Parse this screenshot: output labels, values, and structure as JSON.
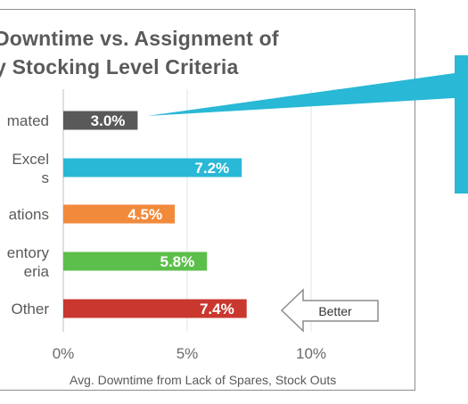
{
  "chart_data": {
    "type": "bar",
    "orientation": "horizontal",
    "title": [
      "Downtime vs. Assignment of",
      "y Stocking Level Criteria"
    ],
    "categories": [
      [
        "mated"
      ],
      [
        "Excel",
        "s"
      ],
      [
        "ations"
      ],
      [
        "entory",
        "eria"
      ],
      [
        "Other"
      ]
    ],
    "values": [
      3.0,
      7.2,
      4.5,
      5.8,
      7.4
    ],
    "value_labels": [
      "3.0%",
      "7.2%",
      "4.5%",
      "5.8%",
      "7.4%"
    ],
    "colors": [
      "#595959",
      "#29b8d6",
      "#f28a3c",
      "#5cbf4b",
      "#c9372f"
    ],
    "xlim": [
      0,
      15
    ],
    "xticks": [
      0,
      5,
      10
    ],
    "xtick_labels": [
      "0%",
      "5%",
      "10%"
    ],
    "xlabel": "Avg. Downtime from Lack of Spares, Stock Outs",
    "grid": "vertical",
    "annotations": {
      "better_label": "Better",
      "callout_color": "#29b8d6"
    }
  }
}
